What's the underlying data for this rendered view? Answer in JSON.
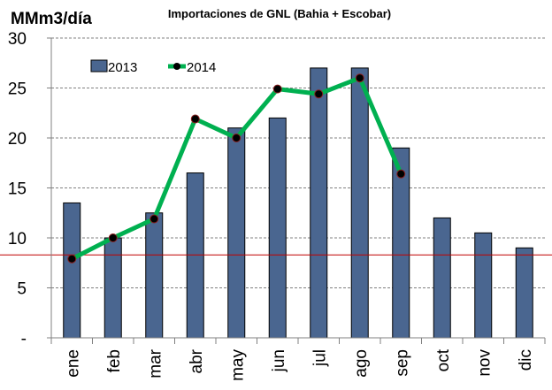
{
  "chart_data": {
    "type": "bar",
    "title": "Importaciones de GNL (Bahia + Escobar)",
    "ylabel": "MMm3/día",
    "xlabel": "",
    "ylim": [
      0,
      30
    ],
    "yticks": [
      0,
      5,
      10,
      15,
      20,
      25,
      30
    ],
    "ytick_labels": [
      "-",
      "5",
      "10",
      "15",
      "20",
      "25",
      "30"
    ],
    "grid": "horizontal dashed",
    "legend_placement": "top-left",
    "categories": [
      "ene",
      "feb",
      "mar",
      "abr",
      "may",
      "jun",
      "jul",
      "ago",
      "sep",
      "oct",
      "nov",
      "dic"
    ],
    "series": [
      {
        "name": "2013",
        "type": "bar",
        "color": "#4a6690",
        "values": [
          13.5,
          10,
          12.5,
          16.5,
          21,
          22,
          27,
          27,
          19,
          12,
          10.5,
          9
        ]
      },
      {
        "name": "2014",
        "type": "line",
        "color": "#00b050",
        "marker_color": "#000000",
        "values": [
          7.9,
          10,
          11.9,
          21.9,
          20,
          24.9,
          24.4,
          26,
          16.4,
          null,
          null,
          null
        ]
      }
    ],
    "reference_line": {
      "value": 8.3,
      "color": "#c00000"
    }
  }
}
